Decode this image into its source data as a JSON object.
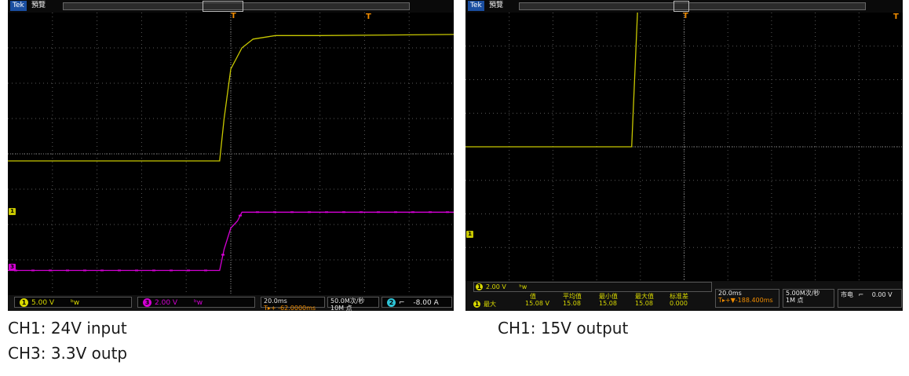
{
  "left_scope": {
    "brand": "Tek",
    "status": "預覽",
    "trigger_marker": "T",
    "ch1_ref_marker": "1",
    "ch3_ref_marker": "3",
    "bottom": {
      "ch1_badge": "1",
      "ch1_scale": "5.00 V",
      "ch1_bw": "ᵇw",
      "ch3_badge": "3",
      "ch3_scale": "2.00 V",
      "ch3_bw": "ᵇw",
      "time_scale": "20.0ms",
      "time_pos": "T▸+ -62.0000ms",
      "sample_rate": "50.0M次/秒",
      "record_len": "10M 点",
      "trig_badge": "2",
      "trig_slope": "⌐",
      "trig_level": "-8.00 A"
    }
  },
  "right_scope": {
    "brand": "Tek",
    "status": "預覽",
    "trigger_marker": "T",
    "ch1_ref_marker": "1",
    "ch1_scale": "2.00 V",
    "ch1_bw": "ᵇw",
    "meas": {
      "badge": "1",
      "row_label": "最大",
      "headers": [
        "值",
        "平均值",
        "最小值",
        "最大值",
        "标准差"
      ],
      "values": [
        "15.08 V",
        "15.08",
        "15.08",
        "15.08",
        "0.000"
      ]
    },
    "bottom": {
      "time_scale": "20.0ms",
      "time_pos": "T▸+▼-188.400ms",
      "sample_rate": "5.00M次/秒",
      "record_len": "1M 点",
      "trig_source": "市电",
      "trig_slope": "⌐",
      "trig_level": "0.00 V"
    }
  },
  "captions": {
    "left_line1": "CH1: 24V input",
    "left_line2": "CH3: 3.3V outp",
    "right_line1": "CH1: 15V output"
  },
  "colors": {
    "ch1": "#c8c800",
    "ch3": "#d400d4",
    "grid": "#5a5a5a",
    "trigger": "#f08c00"
  },
  "chart_data": [
    {
      "type": "line",
      "title": "",
      "xlabel": "",
      "ylabel": "",
      "grid": true,
      "x_unit": "ms",
      "xlim": [
        -100,
        100
      ],
      "series": [
        {
          "name": "CH1",
          "volts_per_div": 5.0,
          "x": [
            -100,
            -5,
            -3,
            0,
            5,
            10,
            20,
            40,
            100
          ],
          "divisions": [
            -0.2,
            -0.2,
            1.0,
            2.4,
            3.0,
            3.25,
            3.35,
            3.35,
            3.38
          ]
        },
        {
          "name": "CH3",
          "volts_per_div": 2.0,
          "x": [
            -100,
            -5,
            -3,
            0,
            3,
            5,
            100
          ],
          "divisions": [
            -3.3,
            -3.3,
            -2.7,
            -2.1,
            -1.9,
            -1.65,
            -1.65
          ]
        }
      ]
    },
    {
      "type": "line",
      "title": "",
      "xlabel": "",
      "ylabel": "",
      "grid": true,
      "x_unit": "ms",
      "xlim": [
        -100,
        100
      ],
      "series": [
        {
          "name": "CH1",
          "volts_per_div": 2.0,
          "x": [
            -100,
            -24,
            -19,
            100
          ],
          "divisions": [
            0.0,
            0.0,
            7.5,
            7.5
          ]
        }
      ]
    }
  ]
}
